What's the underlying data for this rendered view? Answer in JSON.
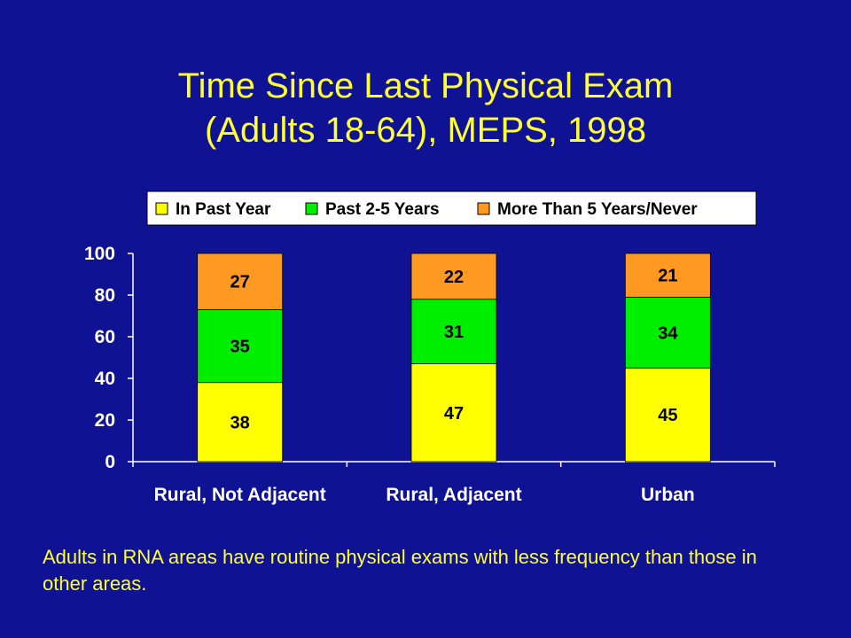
{
  "title": {
    "line1": "Time Since Last Physical Exam",
    "line2": "(Adults 18-64), MEPS, 1998"
  },
  "note": "Adults in RNA areas have routine physical exams with less frequency than those in other areas.",
  "colors": {
    "background": "#0f1293",
    "title_text": "#ffff33",
    "axis": "#ffffff",
    "legend_bg": "#ffffff"
  },
  "chart_data": {
    "type": "bar",
    "stacked": true,
    "categories": [
      "Rural, Not Adjacent",
      "Rural, Adjacent",
      "Urban"
    ],
    "series": [
      {
        "name": "In Past Year",
        "color": "#ffff00",
        "values": [
          38,
          47,
          45
        ]
      },
      {
        "name": "Past 2-5 Years",
        "color": "#00ee00",
        "values": [
          35,
          31,
          34
        ]
      },
      {
        "name": "More Than 5 Years/Never",
        "color": "#ff9922",
        "values": [
          27,
          22,
          21
        ]
      }
    ],
    "ylim": [
      0,
      100
    ],
    "yticks": [
      0,
      20,
      40,
      60,
      80,
      100
    ],
    "xlabel": "",
    "ylabel": "",
    "grid": false,
    "legend_position": "top"
  }
}
